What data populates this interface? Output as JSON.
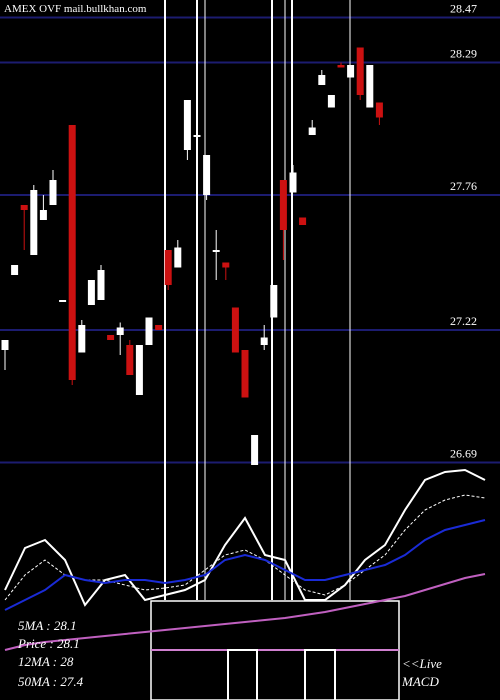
{
  "chart_data": {
    "type": "candlestick",
    "title": "AMEX  OVF mail.bullkhan.com",
    "open": [
      27.14,
      27.44,
      27.72,
      27.52,
      27.66,
      27.72,
      27.34,
      28.04,
      27.13,
      27.32,
      27.34,
      27.2,
      27.2,
      27.16,
      26.96,
      27.16,
      27.24,
      27.54,
      27.47,
      27.94,
      28.0,
      27.76,
      27.54,
      27.49,
      27.31,
      27.14,
      26.68,
      27.16,
      27.27,
      27.82,
      27.77,
      27.67,
      28.0,
      28.2,
      28.11,
      28.28,
      28.23,
      28.35,
      28.11,
      28.13
    ],
    "high": [
      27.18,
      27.48,
      27.72,
      27.8,
      27.76,
      27.86,
      27.34,
      28.04,
      27.26,
      27.42,
      27.48,
      27.2,
      27.25,
      27.18,
      27.16,
      27.27,
      27.24,
      27.54,
      27.58,
      28.14,
      28.02,
      27.92,
      27.62,
      27.49,
      27.31,
      27.14,
      26.8,
      27.24,
      27.4,
      27.82,
      27.88,
      27.67,
      28.06,
      28.26,
      28.16,
      28.29,
      28.28,
      28.35,
      28.28,
      28.13
    ],
    "low": [
      27.06,
      27.44,
      27.54,
      27.52,
      27.66,
      27.72,
      27.34,
      27.0,
      27.13,
      27.32,
      27.34,
      27.18,
      27.12,
      27.04,
      26.96,
      27.16,
      27.22,
      27.38,
      27.47,
      27.9,
      27.98,
      27.74,
      27.42,
      27.42,
      27.13,
      26.95,
      26.68,
      27.14,
      27.27,
      27.5,
      27.77,
      27.64,
      28.0,
      28.2,
      28.11,
      28.27,
      28.23,
      28.14,
      28.11,
      28.04
    ],
    "close": [
      27.18,
      27.48,
      27.7,
      27.78,
      27.7,
      27.82,
      27.34,
      27.02,
      27.24,
      27.42,
      27.46,
      27.18,
      27.23,
      27.04,
      27.16,
      27.27,
      27.22,
      27.4,
      27.55,
      28.14,
      28.0,
      27.92,
      27.54,
      27.47,
      27.13,
      26.95,
      26.8,
      27.19,
      27.4,
      27.62,
      27.85,
      27.64,
      28.03,
      28.24,
      28.16,
      28.27,
      28.28,
      28.16,
      28.28,
      28.07
    ],
    "up_color": "#ffffff",
    "down_color": "#cc1111",
    "ylim": [
      26.66,
      28.54
    ],
    "yticks": [
      28.47,
      28.29,
      27.76,
      27.22,
      26.69
    ],
    "grid": true,
    "grid_color": "#1c1c70",
    "indicator": {
      "ylim": [
        0,
        100
      ],
      "series": [
        {
          "color": "#ffffff",
          "dash": false,
          "values": [
            35,
            56,
            60,
            50,
            27.5,
            40,
            42.5,
            30,
            32.5,
            35,
            40,
            57.5,
            71,
            52.5,
            50,
            30,
            30,
            37.5,
            50,
            57.5,
            75,
            90,
            94,
            95,
            90
          ]
        },
        {
          "color": "#ffffff",
          "dash": true,
          "values": [
            30,
            42.5,
            50,
            42.5,
            40,
            40,
            37.5,
            35,
            36,
            37.5,
            45,
            52.5,
            55,
            50,
            42.5,
            35,
            32.5,
            37.5,
            45,
            52.5,
            65,
            75,
            80,
            82.5,
            81
          ]
        },
        {
          "color": "#1a2bd6",
          "dash": false,
          "values": [
            25,
            30,
            35,
            42.5,
            40,
            38.5,
            40,
            40,
            38.5,
            40,
            42.5,
            50,
            52.5,
            50,
            45,
            40,
            40,
            42.5,
            45,
            47.5,
            52.5,
            60,
            65,
            67.5,
            70
          ]
        },
        {
          "color": "#c060c0",
          "dash": false,
          "values": [
            5,
            7.5,
            9,
            10,
            11,
            12,
            13,
            14,
            15,
            16,
            17,
            18,
            19,
            20,
            21,
            22.5,
            24,
            26,
            28,
            30,
            32,
            35,
            38,
            41,
            43
          ]
        }
      ]
    },
    "annotations": [
      "5MA : 28.1",
      "Price  : 28.1",
      "12MA : 28",
      "50MA : 27.4",
      "<<Live",
      "MACD"
    ]
  }
}
